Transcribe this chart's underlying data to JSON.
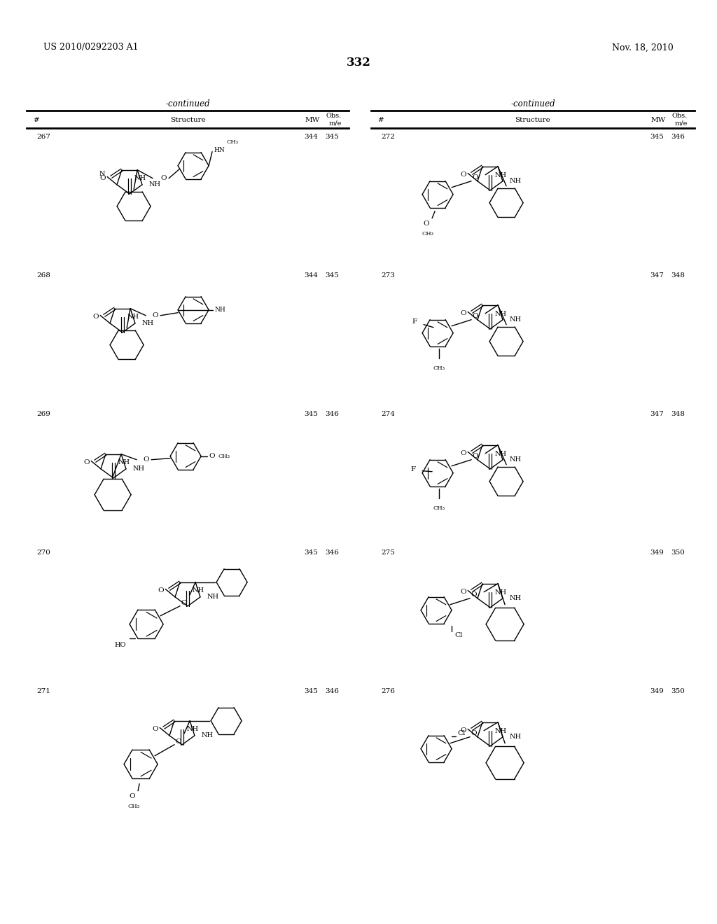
{
  "page_header_left": "US 2010/0292203 A1",
  "page_header_right": "Nov. 18, 2010",
  "page_number": "332",
  "background_color": "#ffffff",
  "left_entries": [
    {
      "num": "267",
      "mw": "344",
      "obs": "345"
    },
    {
      "num": "268",
      "mw": "344",
      "obs": "345"
    },
    {
      "num": "269",
      "mw": "345",
      "obs": "346"
    },
    {
      "num": "270",
      "mw": "345",
      "obs": "346"
    },
    {
      "num": "271",
      "mw": "345",
      "obs": "346"
    }
  ],
  "right_entries": [
    {
      "num": "272",
      "mw": "345",
      "obs": "346"
    },
    {
      "num": "273",
      "mw": "347",
      "obs": "348"
    },
    {
      "num": "274",
      "mw": "347",
      "obs": "348"
    },
    {
      "num": "275",
      "mw": "349",
      "obs": "350"
    },
    {
      "num": "276",
      "mw": "349",
      "obs": "350"
    }
  ]
}
